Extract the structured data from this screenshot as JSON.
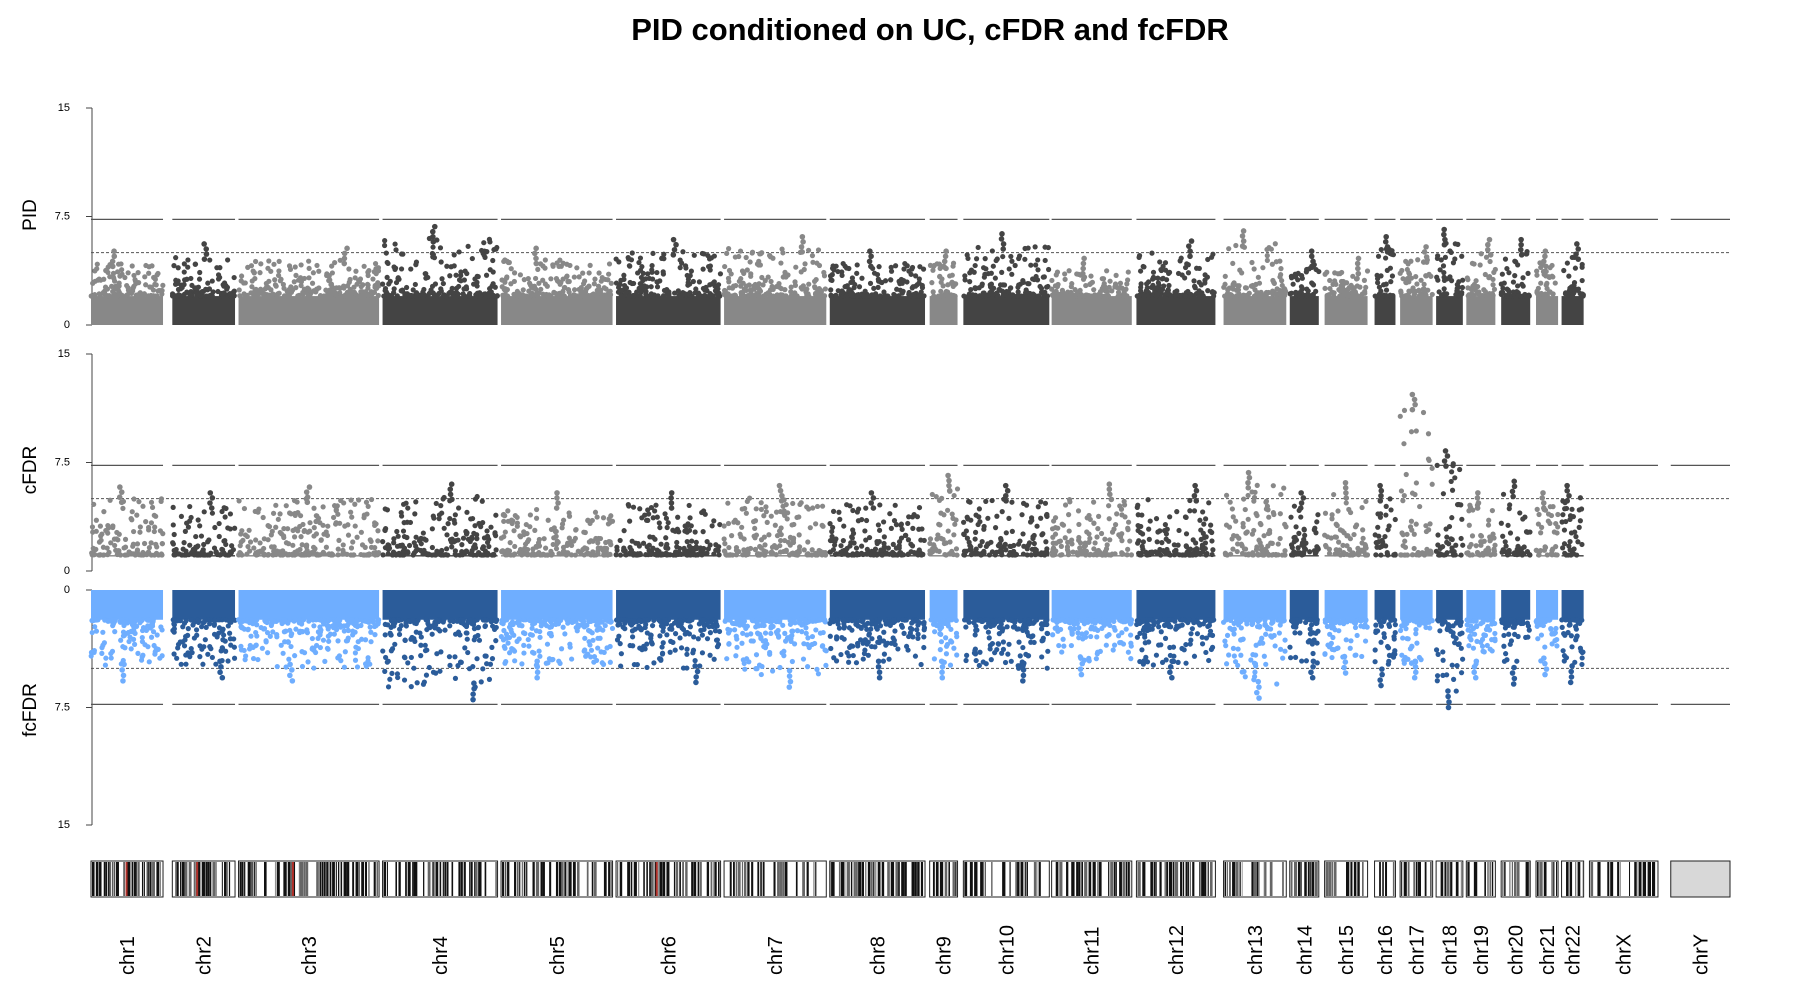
{
  "chart_data": {
    "type": "scatter",
    "subtype": "miami-manhattan",
    "title": "PID conditioned on UC, cFDR and fcFDR",
    "chromosomes": [
      "chr1",
      "chr2",
      "chr3",
      "chr4",
      "chr5",
      "chr6",
      "chr7",
      "chr8",
      "chr9",
      "chr10",
      "chr11",
      "chr12",
      "chr13",
      "chr14",
      "chr15",
      "chr16",
      "chr17",
      "chr18",
      "chr19",
      "chr20",
      "chr21",
      "chr22",
      "chrX",
      "chrY"
    ],
    "panels": [
      {
        "name": "PID",
        "ylabel": "PID",
        "ylim": [
          0,
          15
        ],
        "ticks": [
          "15",
          "7.5",
          "0"
        ],
        "direction": "up",
        "colors": [
          "#888888",
          "#444444"
        ],
        "thresholds": {
          "genome_wide": 7.3,
          "suggestive": 5
        },
        "chromosome_max": [
          5.1,
          5.6,
          5.3,
          6.8,
          5.3,
          5.9,
          6.1,
          5.1,
          5.1,
          6.3,
          4.6,
          5.8,
          6.5,
          5.1,
          4.6,
          6.1,
          5.4,
          6.6,
          5.9,
          5.9,
          5.1,
          5.6,
          null,
          null
        ]
      },
      {
        "name": "cFDR",
        "ylabel": "cFDR",
        "ylim": [
          0,
          15
        ],
        "ticks": [
          "15",
          "7.5",
          "0"
        ],
        "direction": "up",
        "colors": [
          "#888888",
          "#444444"
        ],
        "thresholds": {
          "genome_wide": 7.3,
          "suggestive": 5
        },
        "chromosome_max": [
          5.8,
          5.4,
          5.8,
          6.0,
          5.4,
          5.4,
          5.9,
          5.4,
          6.6,
          5.9,
          6.0,
          5.9,
          6.8,
          5.4,
          6.1,
          5.9,
          12.2,
          8.3,
          5.4,
          6.2,
          5.4,
          5.9,
          null,
          null
        ]
      },
      {
        "name": "fcFDR",
        "ylabel": "fcFDR",
        "ylim": [
          0,
          15
        ],
        "ticks": [
          "0",
          "7.5",
          "15"
        ],
        "direction": "down",
        "colors": [
          "#6FAEFF",
          "#2B5C9A"
        ],
        "thresholds": {
          "genome_wide": 7.3,
          "suggestive": 5
        },
        "chromosome_max": [
          5.8,
          5.6,
          5.8,
          7.0,
          5.6,
          5.9,
          6.2,
          5.6,
          5.6,
          5.8,
          5.4,
          5.6,
          6.9,
          5.6,
          5.3,
          6.1,
          5.6,
          7.5,
          5.6,
          6.0,
          5.4,
          5.9,
          null,
          null
        ]
      }
    ],
    "ideogram": true
  }
}
